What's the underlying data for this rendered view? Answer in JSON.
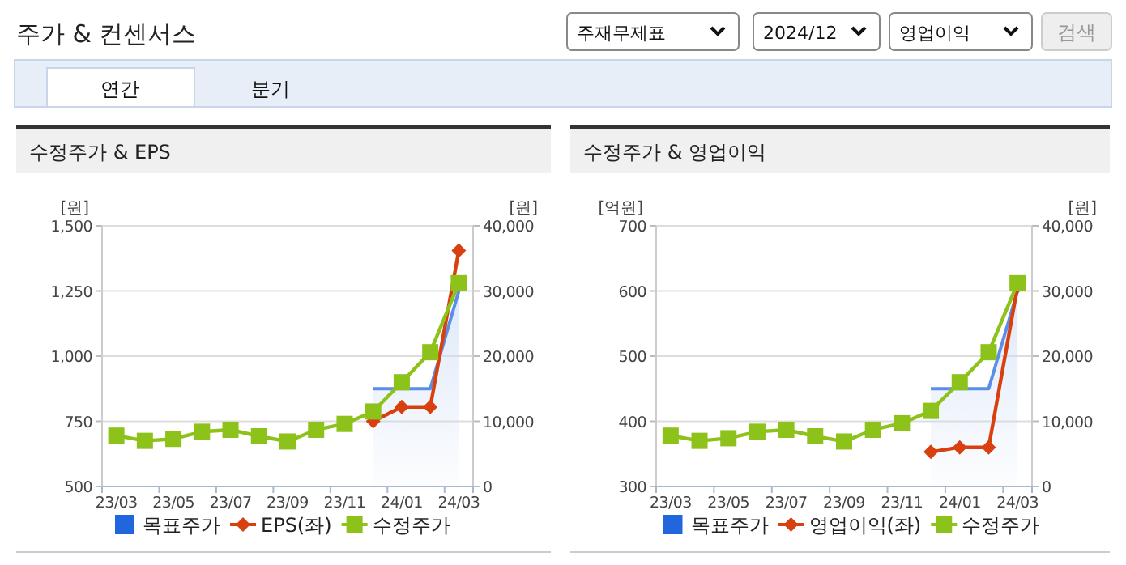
{
  "chart_data": [
    {
      "type": "other",
      "title": "주가 & 컨센서스",
      "annotations": [
        "주재무제표",
        "2024/12",
        "영업이익",
        "검색",
        "연간",
        "분기"
      ]
    },
    {
      "type": "line",
      "title": "수정주가 & EPS",
      "ylabel": "[원]",
      "y2label": "[원]",
      "categories": [
        "23/03",
        null,
        "23/05",
        null,
        "23/07",
        null,
        "23/09",
        null,
        "23/11",
        null,
        "24/01",
        null,
        "24/03"
      ],
      "ylim": [
        500,
        1500
      ],
      "yticks": [
        500,
        750,
        {
          "value": 1000,
          "label": "1,000"
        },
        {
          "value": 1250,
          "label": "1,250"
        },
        {
          "value": 1500,
          "label": "1,500"
        }
      ],
      "y2lim": [
        0,
        40000
      ],
      "y2ticks": [
        0,
        {
          "value": 10000,
          "label": "10,000"
        },
        {
          "value": 20000,
          "label": "20,000"
        },
        {
          "value": 30000,
          "label": "30,000"
        },
        {
          "value": 40000,
          "label": "40,000"
        }
      ],
      "grid": "y",
      "legend": "bottom",
      "series": [
        {
          "name": "목표주가",
          "type": "area",
          "color": "#5b8ee6",
          "axis": "y2",
          "marker": "none",
          "values": [
            null,
            null,
            null,
            null,
            null,
            null,
            null,
            null,
            null,
            15000,
            15000,
            15000,
            30000
          ]
        },
        {
          "name": "EPS(좌)",
          "type": "line",
          "color": "#d9400f",
          "marker": "diamond",
          "values": [
            null,
            null,
            null,
            null,
            null,
            null,
            null,
            null,
            null,
            750,
            805,
            805,
            1405
          ]
        },
        {
          "name": "수정주가",
          "type": "line",
          "color": "#8cc21a",
          "axis": "y2",
          "marker": "square",
          "values": [
            7800,
            7000,
            7300,
            8400,
            8700,
            7700,
            6900,
            8700,
            9600,
            11500,
            16000,
            20600,
            31200
          ]
        }
      ]
    },
    {
      "type": "line",
      "title": "수정주가 & 영업이익",
      "ylabel": "[억원]",
      "y2label": "[원]",
      "categories": [
        "23/03",
        null,
        "23/05",
        null,
        "23/07",
        null,
        "23/09",
        null,
        "23/11",
        null,
        "24/01",
        null,
        "24/03"
      ],
      "ylim": [
        300,
        700
      ],
      "yticks": [
        300,
        400,
        500,
        600,
        700
      ],
      "y2lim": [
        0,
        40000
      ],
      "y2ticks": [
        0,
        {
          "value": 10000,
          "label": "10,000"
        },
        {
          "value": 20000,
          "label": "20,000"
        },
        {
          "value": 30000,
          "label": "30,000"
        },
        {
          "value": 40000,
          "label": "40,000"
        }
      ],
      "grid": "y",
      "legend": "bottom",
      "series": [
        {
          "name": "목표주가",
          "type": "area",
          "color": "#5b8ee6",
          "axis": "y2",
          "marker": "none",
          "values": [
            null,
            null,
            null,
            null,
            null,
            null,
            null,
            null,
            null,
            15000,
            15000,
            15000,
            30000
          ]
        },
        {
          "name": "영업이익(좌)",
          "type": "line",
          "color": "#d9400f",
          "marker": "diamond",
          "values": [
            null,
            null,
            null,
            null,
            null,
            null,
            null,
            null,
            null,
            353,
            360,
            360,
            607
          ]
        },
        {
          "name": "수정주가",
          "type": "line",
          "color": "#8cc21a",
          "axis": "y2",
          "marker": "square",
          "values": [
            7800,
            7000,
            7400,
            8400,
            8700,
            7700,
            6900,
            8700,
            9700,
            11600,
            16000,
            20600,
            31200
          ]
        }
      ]
    }
  ]
}
